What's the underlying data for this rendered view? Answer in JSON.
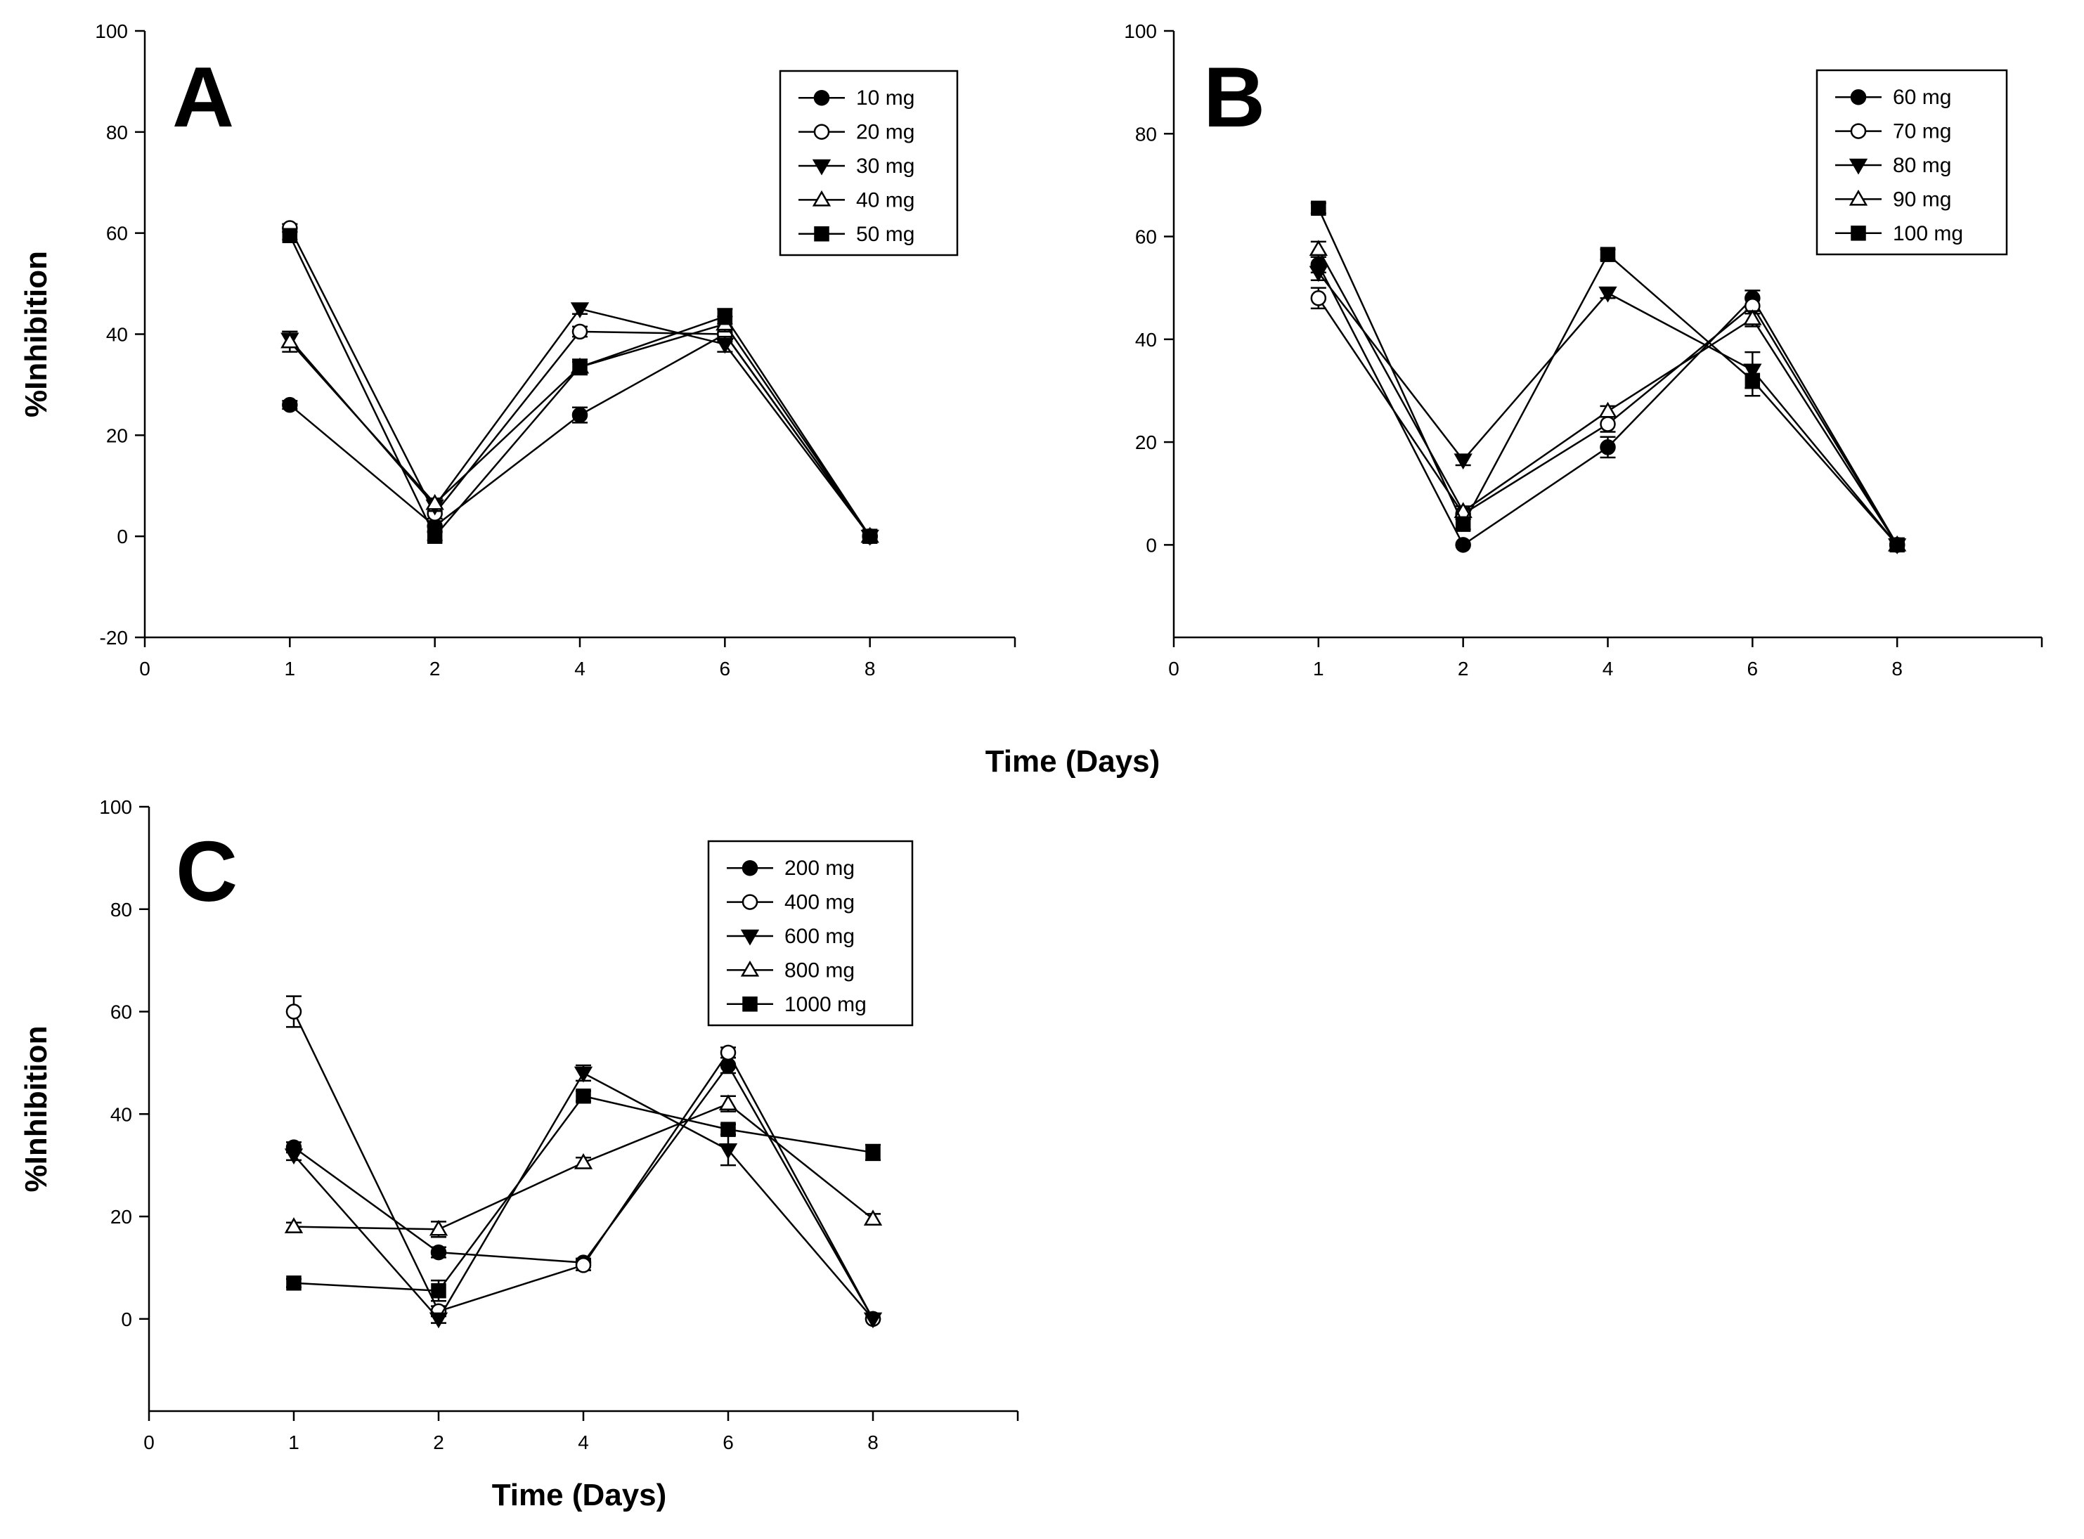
{
  "figure": {
    "shared_xlabel": "Time (Days)"
  },
  "chart_data": [
    {
      "type": "line",
      "panel": "A",
      "xlabel": "",
      "ylabel": "%Inhibition",
      "xlim": [
        0,
        12
      ],
      "ylim": [
        -20,
        100
      ],
      "x_ticks": [
        "0",
        "1",
        "2",
        "4",
        "6",
        "8"
      ],
      "y_ticks": [
        "-20",
        "0",
        "20",
        "40",
        "60",
        "80",
        "100"
      ],
      "categories": [
        "1",
        "2",
        "4",
        "6",
        "8"
      ],
      "legend_position": "top-right",
      "series": [
        {
          "name": "10 mg",
          "marker": "circle-filled",
          "values": [
            26,
            2,
            24,
            40,
            0
          ],
          "errors": [
            0.8,
            1,
            1.5,
            1.5,
            0.5
          ]
        },
        {
          "name": "20 mg",
          "marker": "circle-open",
          "values": [
            61,
            4.5,
            40.5,
            40,
            0
          ],
          "errors": [
            0.8,
            1,
            1,
            1,
            0.5
          ]
        },
        {
          "name": "30 mg",
          "marker": "triangle-down-filled",
          "values": [
            39,
            6,
            45,
            38,
            0
          ],
          "errors": [
            1.5,
            1,
            1,
            1.5,
            0.5
          ]
        },
        {
          "name": "40 mg",
          "marker": "triangle-up-open",
          "values": [
            38.5,
            6.5,
            33.5,
            42,
            0
          ],
          "errors": [
            2,
            1,
            1,
            1.5,
            0.5
          ]
        },
        {
          "name": "50 mg",
          "marker": "square-filled",
          "values": [
            59.5,
            0,
            33.5,
            43.5,
            0
          ],
          "errors": [
            0.8,
            0.8,
            1.5,
            1.5,
            0.5
          ]
        }
      ]
    },
    {
      "type": "line",
      "panel": "B",
      "xlabel": "",
      "ylabel": "",
      "xlim": [
        0,
        12
      ],
      "ylim": [
        -18,
        100
      ],
      "x_ticks": [
        "0",
        "1",
        "2",
        "4",
        "6",
        "8"
      ],
      "y_ticks": [
        "0",
        "20",
        "40",
        "60",
        "80",
        "100"
      ],
      "categories": [
        "1",
        "2",
        "4",
        "6",
        "8"
      ],
      "legend_position": "top-right",
      "series": [
        {
          "name": "60 mg",
          "marker": "circle-filled",
          "values": [
            54.5,
            0,
            19,
            48,
            0
          ],
          "errors": [
            1.5,
            0.5,
            2,
            1.5,
            0.5
          ]
        },
        {
          "name": "70 mg",
          "marker": "circle-open",
          "values": [
            48,
            6,
            23.5,
            46.5,
            0
          ],
          "errors": [
            2,
            1,
            1.5,
            1.5,
            0.5
          ]
        },
        {
          "name": "80 mg",
          "marker": "triangle-down-filled",
          "values": [
            53,
            16.5,
            49,
            34,
            0
          ],
          "errors": [
            1.5,
            1,
            1,
            3.5,
            0.5
          ]
        },
        {
          "name": "90 mg",
          "marker": "triangle-up-open",
          "values": [
            57.5,
            6.5,
            26,
            44,
            0
          ],
          "errors": [
            1.5,
            1,
            1,
            1.5,
            0.5
          ]
        },
        {
          "name": "100 mg",
          "marker": "square-filled",
          "values": [
            65.5,
            4,
            56.5,
            32,
            0
          ],
          "errors": [
            1,
            1,
            1,
            3,
            0.5
          ]
        }
      ]
    },
    {
      "type": "line",
      "panel": "C",
      "xlabel": "Time (Days)",
      "ylabel": "%Inhibition",
      "xlim": [
        0,
        12
      ],
      "ylim": [
        -18,
        100
      ],
      "x_ticks": [
        "0",
        "1",
        "2",
        "4",
        "6",
        "8"
      ],
      "y_ticks": [
        "0",
        "20",
        "40",
        "60",
        "80",
        "100"
      ],
      "categories": [
        "1",
        "2",
        "4",
        "6",
        "8"
      ],
      "legend_position": "top-right",
      "series": [
        {
          "name": "200 mg",
          "marker": "circle-filled",
          "values": [
            33.5,
            13,
            11,
            49.5,
            0
          ],
          "errors": [
            1,
            1,
            0.8,
            1.5,
            0.5
          ]
        },
        {
          "name": "400 mg",
          "marker": "circle-open",
          "values": [
            60,
            1.5,
            10.5,
            52,
            0
          ],
          "errors": [
            3,
            1,
            1,
            1,
            0.5
          ]
        },
        {
          "name": "600 mg",
          "marker": "triangle-down-filled",
          "values": [
            32,
            0,
            48,
            33,
            0
          ],
          "errors": [
            1,
            0.8,
            1.5,
            3,
            0.5
          ]
        },
        {
          "name": "800 mg",
          "marker": "triangle-up-open",
          "values": [
            18,
            17.5,
            30.5,
            42,
            19.5
          ],
          "errors": [
            0.8,
            1.5,
            1,
            1.5,
            1
          ]
        },
        {
          "name": "1000 mg",
          "marker": "square-filled",
          "values": [
            7,
            5.5,
            43.5,
            37,
            32.5
          ],
          "errors": [
            0.8,
            2,
            1,
            1,
            1.5
          ]
        }
      ]
    }
  ]
}
